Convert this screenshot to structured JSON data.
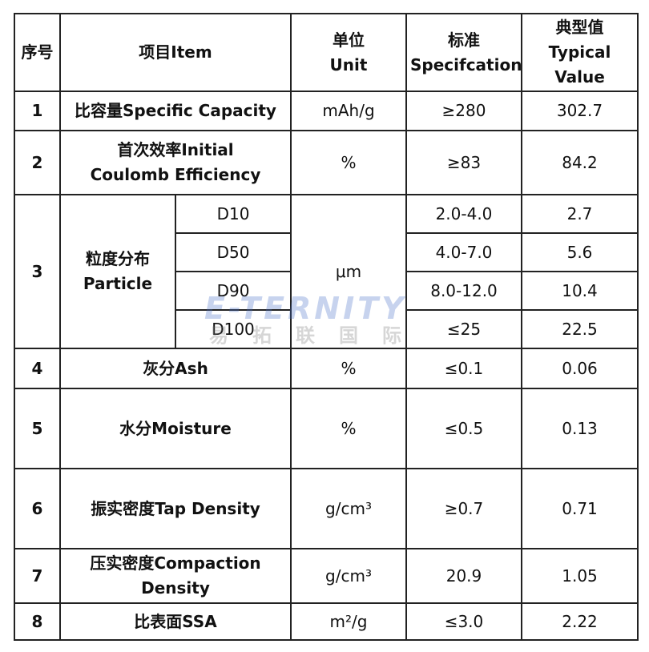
{
  "header": {
    "no": "序号",
    "item": "项目Item",
    "unit": [
      "单位",
      "Unit"
    ],
    "spec": [
      "标准",
      "Specifcation"
    ],
    "typical": [
      "典型值",
      "Typical",
      "Value"
    ]
  },
  "rows": [
    {
      "no": 1,
      "item": "比容量Specific Capacity",
      "unit": "mAh/g",
      "spec": "≥280",
      "typical": 302.7
    },
    {
      "no": 2,
      "item": "首次效率Initial Coulomb Efficiency",
      "unit": "%",
      "spec": "≥83",
      "typical": 84.2
    },
    {
      "no": 3,
      "item": [
        "粒度分布",
        "Particle"
      ],
      "unit": "μm",
      "sub": [
        {
          "name": "D10",
          "spec": "2.0-4.0",
          "typical": 2.7
        },
        {
          "name": "D50",
          "spec": "4.0-7.0",
          "typical": 5.6
        },
        {
          "name": "D90",
          "spec": "8.0-12.0",
          "typical": 10.4
        },
        {
          "name": "D100",
          "spec": "≤25",
          "typical": 22.5
        }
      ]
    },
    {
      "no": 4,
      "item": "灰分Ash",
      "unit": "%",
      "spec": "≤0.1",
      "typical": 0.06
    },
    {
      "no": 5,
      "item": "水分Moisture",
      "unit": "%",
      "spec": "≤0.5",
      "typical": 0.13
    },
    {
      "no": 6,
      "item": "振实密度Tap Density",
      "unit": "g/cm³",
      "spec": "≥0.7",
      "typical": 0.71
    },
    {
      "no": 7,
      "item": "压实密度Compaction Density",
      "unit": "g/cm³",
      "spec": "20.9",
      "typical": 1.05
    },
    {
      "no": 8,
      "item": "比表面SSA",
      "unit": "m²/g",
      "spec": "≤3.0",
      "typical": 2.22
    }
  ],
  "watermark": {
    "brand": "E-TERNITY",
    "name": "易拓联国际"
  }
}
